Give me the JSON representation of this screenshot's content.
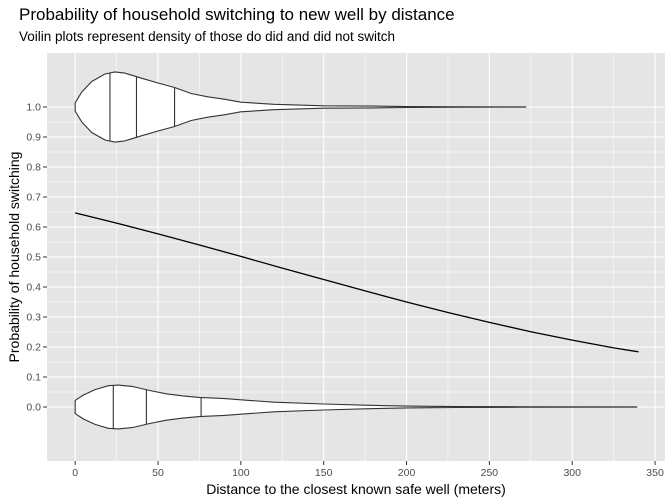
{
  "chart_data": {
    "type": "line",
    "title": "Probability of household switching to new well by distance",
    "subtitle": "Voilin plots represent density of those do did and did not switch",
    "xlabel": "Distance to the closest known safe well (meters)",
    "ylabel": "Probability of household switching",
    "xlim": [
      -17,
      356
    ],
    "ylim": [
      -0.18,
      1.18
    ],
    "x_ticks": [
      0,
      50,
      100,
      150,
      200,
      250,
      300,
      350
    ],
    "y_ticks": [
      0.0,
      0.1,
      0.2,
      0.3,
      0.4,
      0.5,
      0.6,
      0.7,
      0.8,
      0.9,
      1.0
    ],
    "x_tick_labels": [
      "0",
      "50",
      "100",
      "150",
      "200",
      "250",
      "300",
      "350"
    ],
    "y_tick_labels": [
      "0.0",
      "0.1",
      "0.2",
      "0.3",
      "0.4",
      "0.5",
      "0.6",
      "0.7",
      "0.8",
      "0.9",
      "1.0"
    ],
    "grid": true,
    "colors": {
      "panel": "#e5e5e5",
      "grid": "#ffffff",
      "line": "#000000",
      "violin": "#333333"
    },
    "series": [
      {
        "x": [
          0,
          25,
          50,
          75,
          100,
          125,
          150,
          175,
          200,
          225,
          250,
          275,
          300,
          325,
          340
        ],
        "y": [
          0.647,
          0.613,
          0.577,
          0.54,
          0.502,
          0.463,
          0.425,
          0.387,
          0.35,
          0.315,
          0.282,
          0.251,
          0.223,
          0.197,
          0.184
        ]
      }
    ],
    "violins": [
      {
        "y_center": 1.0,
        "x_min": 0,
        "x_max": 272,
        "quantiles": [
          21,
          37,
          60
        ],
        "profile": [
          [
            0,
            0.014
          ],
          [
            4,
            0.05
          ],
          [
            10,
            0.085
          ],
          [
            18,
            0.11
          ],
          [
            24,
            0.117
          ],
          [
            30,
            0.113
          ],
          [
            40,
            0.096
          ],
          [
            50,
            0.08
          ],
          [
            60,
            0.065
          ],
          [
            70,
            0.045
          ],
          [
            80,
            0.034
          ],
          [
            90,
            0.026
          ],
          [
            100,
            0.016
          ],
          [
            120,
            0.009
          ],
          [
            150,
            0.004
          ],
          [
            180,
            0.003
          ],
          [
            200,
            0.0015
          ],
          [
            230,
            0.0008
          ],
          [
            272,
            0.0003
          ]
        ]
      },
      {
        "y_center": 0.0,
        "x_min": 0,
        "x_max": 339,
        "quantiles": [
          23,
          43,
          76
        ],
        "profile": [
          [
            0,
            0.022
          ],
          [
            5,
            0.04
          ],
          [
            12,
            0.058
          ],
          [
            20,
            0.071
          ],
          [
            26,
            0.073
          ],
          [
            35,
            0.068
          ],
          [
            45,
            0.055
          ],
          [
            55,
            0.044
          ],
          [
            65,
            0.037
          ],
          [
            75,
            0.032
          ],
          [
            90,
            0.028
          ],
          [
            105,
            0.022
          ],
          [
            120,
            0.016
          ],
          [
            150,
            0.01
          ],
          [
            175,
            0.006
          ],
          [
            200,
            0.003
          ],
          [
            230,
            0.0015
          ],
          [
            270,
            0.0008
          ],
          [
            339,
            0.0003
          ]
        ]
      }
    ]
  }
}
